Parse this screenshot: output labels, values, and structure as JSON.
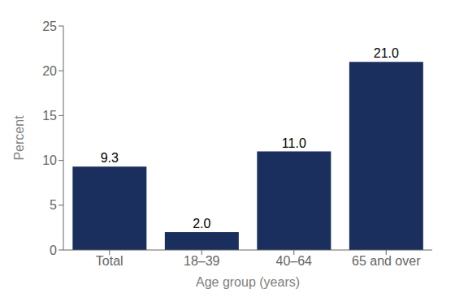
{
  "chart_data": {
    "type": "bar",
    "categories": [
      "Total",
      "18–39",
      "40–64",
      "65 and over"
    ],
    "values": [
      9.3,
      2.0,
      11.0,
      21.0
    ],
    "value_labels": [
      "9.3",
      "2.0",
      "11.0",
      "21.0"
    ],
    "color": "#1a2f5e",
    "xlabel": "Age group (years)",
    "ylabel": "Percent",
    "ylim": [
      0,
      25
    ],
    "yticks": [
      0,
      5,
      10,
      15,
      20,
      25
    ],
    "grid": false,
    "data_labels": true
  }
}
